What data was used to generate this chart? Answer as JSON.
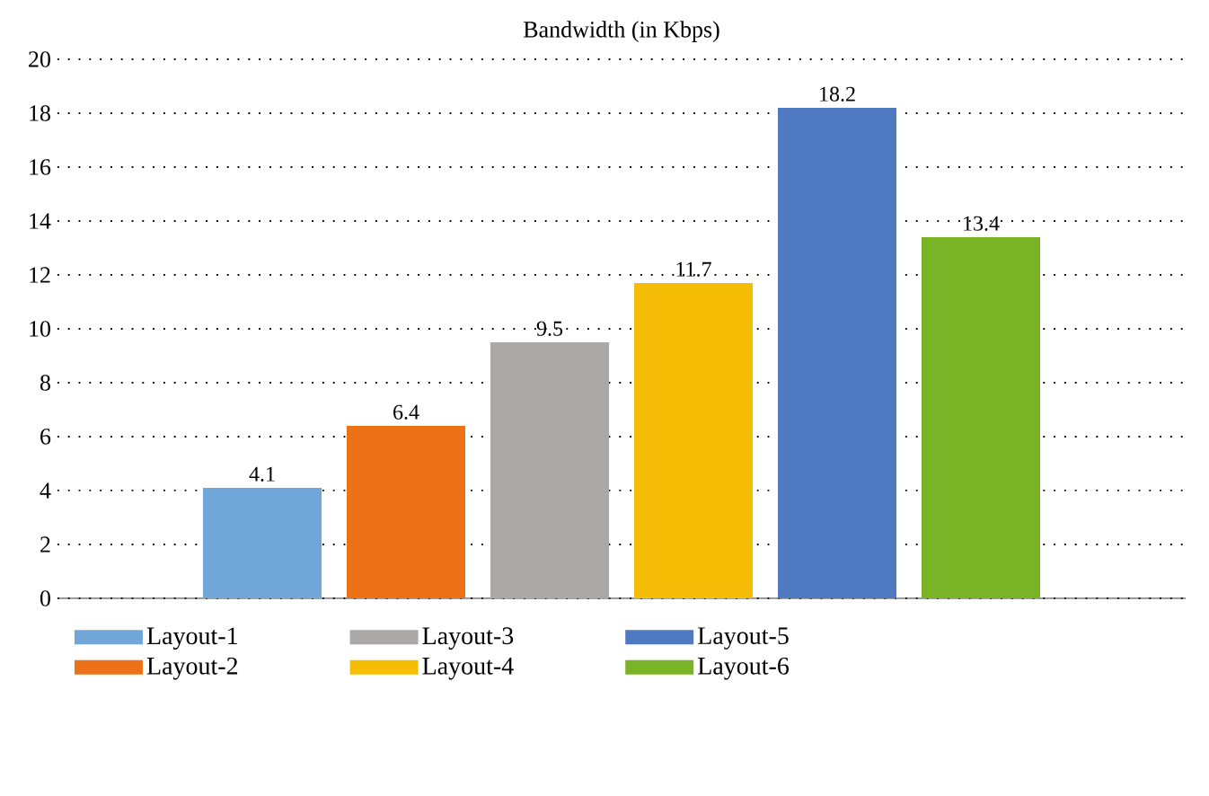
{
  "chart_data": {
    "type": "bar",
    "title": "Bandwidth (in Kbps)",
    "categories": [
      null
    ],
    "series": [
      {
        "name": "Layout-1",
        "color": "#70a6d8",
        "values": [
          4.1
        ]
      },
      {
        "name": "Layout-2",
        "color": "#ed7117",
        "values": [
          6.4
        ]
      },
      {
        "name": "Layout-3",
        "color": "#aba8a6",
        "values": [
          9.5
        ]
      },
      {
        "name": "Layout-4",
        "color": "#f6bd06",
        "values": [
          11.7
        ]
      },
      {
        "name": "Layout-5",
        "color": "#4f79c0",
        "values": [
          18.2
        ]
      },
      {
        "name": "Layout-6",
        "color": "#78b425",
        "values": [
          13.4
        ]
      }
    ],
    "ylim": [
      0,
      20
    ],
    "yticks": [
      0,
      2,
      4,
      6,
      8,
      10,
      12,
      14,
      16,
      18,
      20
    ],
    "grid": "y",
    "legend": "bottom",
    "data_labels": true
  }
}
